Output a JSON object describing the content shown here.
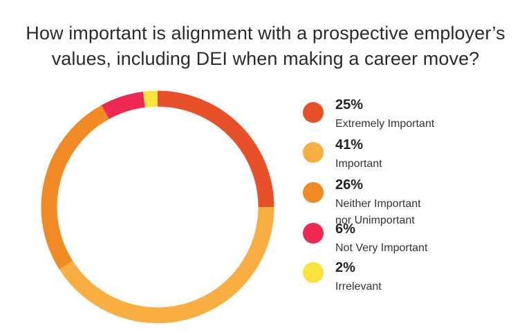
{
  "chart_data": {
    "type": "pie",
    "donut": true,
    "title_lines": [
      "How important is alignment with a prospective employer’s",
      "values, including DEI when making a career move?"
    ],
    "slices": [
      {
        "percent_label": "25%",
        "value": 25,
        "label_lines": [
          "Extremely Important"
        ],
        "color": "#E8502A"
      },
      {
        "percent_label": "41%",
        "value": 41,
        "label_lines": [
          "Important"
        ],
        "color": "#F9AE42"
      },
      {
        "percent_label": "26%",
        "value": 26,
        "label_lines": [
          "Neither Important",
          "nor Unimportant"
        ],
        "color": "#F08A24"
      },
      {
        "percent_label": "6%",
        "value": 6,
        "label_lines": [
          "Not Very Important"
        ],
        "color": "#EC2853"
      },
      {
        "percent_label": "2%",
        "value": 2,
        "label_lines": [
          "Irrelevant"
        ],
        "color": "#FBE23C"
      }
    ],
    "start_angle_deg": 0,
    "direction": "clockwise",
    "legend_position": "right"
  }
}
